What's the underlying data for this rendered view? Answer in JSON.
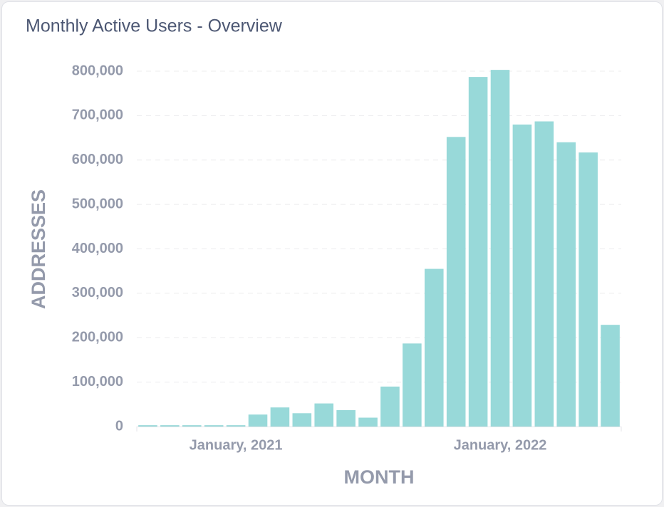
{
  "chart_data": {
    "type": "bar",
    "title": "Monthly Active Users - Overview",
    "x_label": "MONTH",
    "y_label": "ADDRESSES",
    "categories": [
      null,
      null,
      null,
      null,
      "January, 2021",
      null,
      null,
      null,
      null,
      null,
      null,
      null,
      null,
      null,
      null,
      null,
      "January, 2022",
      null,
      null,
      null,
      null,
      null
    ],
    "values": [
      3000,
      3000,
      3000,
      3000,
      3000,
      27000,
      43000,
      30000,
      52000,
      37000,
      20000,
      90000,
      187000,
      355000,
      652000,
      787000,
      803000,
      680000,
      687000,
      640000,
      617000,
      229000
    ],
    "color": "#98d9d9",
    "ylim": [
      0,
      800000
    ],
    "yticks": [
      0,
      {
        "value": 100000,
        "label": "100,000"
      },
      {
        "value": 200000,
        "label": "200,000"
      },
      {
        "value": 300000,
        "label": "300,000"
      },
      {
        "value": 400000,
        "label": "400,000"
      },
      {
        "value": 500000,
        "label": "500,000"
      },
      {
        "value": 600000,
        "label": "600,000"
      },
      {
        "value": 700000,
        "label": "700,000"
      },
      {
        "value": 800000,
        "label": "800,000"
      }
    ],
    "grid": true
  }
}
